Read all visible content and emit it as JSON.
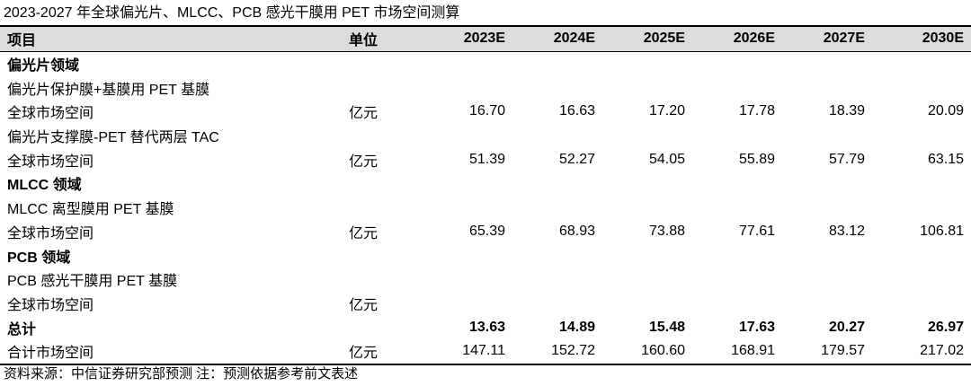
{
  "title": "2023-2027 年全球偏光片、MLCC、PCB 感光干膜用 PET 市场空间测算",
  "headers": [
    "项目",
    "单位",
    "2023E",
    "2024E",
    "2025E",
    "2026E",
    "2027E",
    "2030E"
  ],
  "rows": [
    {
      "kind": "section",
      "cells": [
        "偏光片领域",
        "",
        "",
        "",
        "",
        "",
        "",
        ""
      ]
    },
    {
      "kind": "sub",
      "cells": [
        "偏光片保护膜+基膜用 PET 基膜",
        "",
        "",
        "",
        "",
        "",
        "",
        ""
      ]
    },
    {
      "kind": "data",
      "cells": [
        "全球市场空间",
        "亿元",
        "16.70",
        "16.63",
        "17.20",
        "17.78",
        "18.39",
        "20.09"
      ]
    },
    {
      "kind": "sub",
      "cells": [
        "偏光片支撑膜-PET 替代两层 TAC",
        "",
        "",
        "",
        "",
        "",
        "",
        ""
      ]
    },
    {
      "kind": "data",
      "cells": [
        "全球市场空间",
        "亿元",
        "51.39",
        "52.27",
        "54.05",
        "55.89",
        "57.79",
        "63.15"
      ]
    },
    {
      "kind": "section",
      "cells": [
        "MLCC 领域",
        "",
        "",
        "",
        "",
        "",
        "",
        ""
      ]
    },
    {
      "kind": "sub",
      "cells": [
        "MLCC 离型膜用 PET 基膜",
        "",
        "",
        "",
        "",
        "",
        "",
        ""
      ]
    },
    {
      "kind": "data",
      "cells": [
        "全球市场空间",
        "亿元",
        "65.39",
        "68.93",
        "73.88",
        "77.61",
        "83.12",
        "106.81"
      ]
    },
    {
      "kind": "section",
      "cells": [
        "PCB 领域",
        "",
        "",
        "",
        "",
        "",
        "",
        ""
      ]
    },
    {
      "kind": "sub",
      "cells": [
        "PCB 感光干膜用 PET 基膜",
        "",
        "",
        "",
        "",
        "",
        "",
        ""
      ]
    },
    {
      "kind": "data",
      "cells": [
        "全球市场空间",
        "亿元",
        "",
        "",
        "",
        "",
        "",
        ""
      ]
    },
    {
      "kind": "section",
      "cells": [
        "总计",
        "",
        "13.63",
        "14.89",
        "15.48",
        "17.63",
        "20.27",
        "26.97"
      ]
    },
    {
      "kind": "data",
      "cells": [
        "合计市场空间",
        "亿元",
        "147.11",
        "152.72",
        "160.60",
        "168.91",
        "179.57",
        "217.02"
      ]
    }
  ],
  "source": "资料来源：中信证券研究部预测  注：预测依据参考前文表述"
}
